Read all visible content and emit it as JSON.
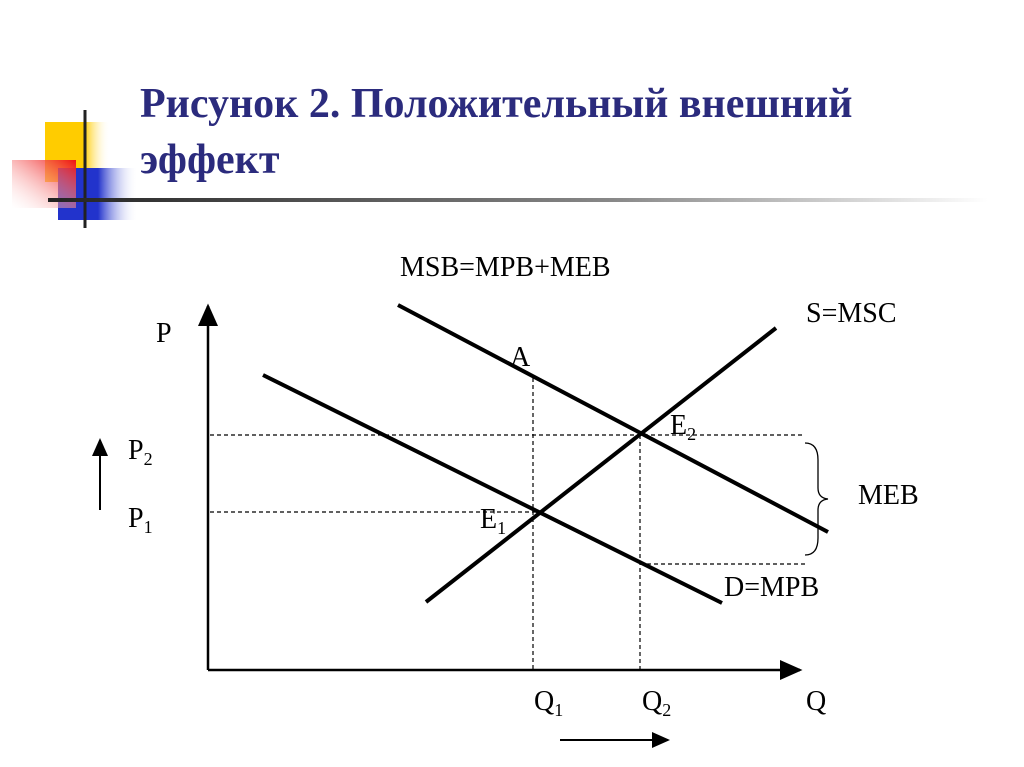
{
  "title": "Рисунок 2. Положительный внешний эффект",
  "labels": {
    "msb": "MSB=MPB+MEB",
    "s": "S=MSC",
    "p": "P",
    "a": "A",
    "p2": {
      "base": "P",
      "sub": "2"
    },
    "p1": {
      "base": "P",
      "sub": "1"
    },
    "e2": {
      "base": "E",
      "sub": "2"
    },
    "e1": {
      "base": "E",
      "sub": "1"
    },
    "meb": "MEB",
    "d": "D=MPB",
    "q1": {
      "base": "Q",
      "sub": "1"
    },
    "q2": {
      "base": "Q",
      "sub": "2"
    },
    "q": "Q"
  },
  "colors": {
    "title": "#2b2b7d",
    "logo_yellow": "#ffcc00",
    "logo_red": "#ee2222",
    "logo_blue": "#2233cc"
  }
}
